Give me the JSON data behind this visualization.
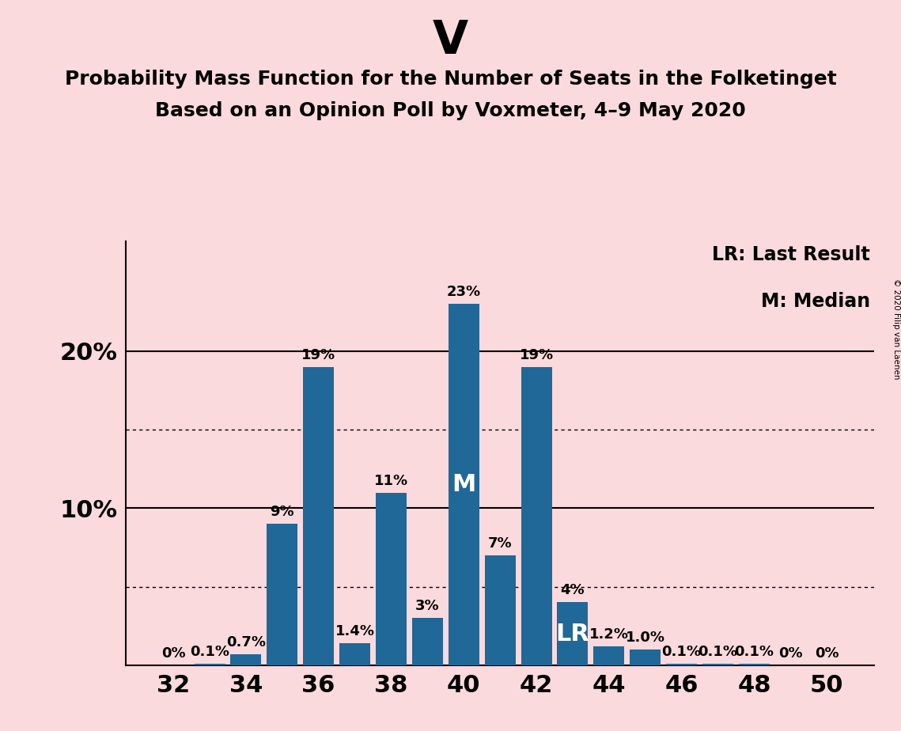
{
  "title_party": "V",
  "title_line1": "Probability Mass Function for the Number of Seats in the Folketinget",
  "title_line2": "Based on an Opinion Poll by Voxmeter, 4–9 May 2020",
  "copyright": "© 2020 Filip van Laenen",
  "legend_lr": "LR: Last Result",
  "legend_m": "M: Median",
  "background_color": "#fadadd",
  "bar_color": "#1f6898",
  "seats": [
    32,
    33,
    34,
    35,
    36,
    37,
    38,
    39,
    40,
    41,
    42,
    43,
    44,
    45,
    46,
    47,
    48,
    49,
    50
  ],
  "probabilities": [
    0.0,
    0.1,
    0.7,
    9.0,
    19.0,
    1.4,
    11.0,
    3.0,
    23.0,
    7.0,
    19.0,
    4.0,
    1.2,
    1.0,
    0.1,
    0.1,
    0.1,
    0.0,
    0.0
  ],
  "labels": [
    "0%",
    "0.1%",
    "0.7%",
    "9%",
    "19%",
    "1.4%",
    "11%",
    "3%",
    "23%",
    "7%",
    "19%",
    "4%",
    "1.2%",
    "1.0%",
    "0.1%",
    "0.1%",
    "0.1%",
    "0%",
    "0%"
  ],
  "median_seat": 40,
  "lr_seat": 43,
  "ylim": [
    0,
    27
  ],
  "solid_gridlines": [
    10,
    20
  ],
  "dotted_gridlines": [
    5,
    15
  ],
  "title_party_fontsize": 42,
  "title_line1_fontsize": 18,
  "title_line2_fontsize": 18,
  "bar_label_fontsize": 13,
  "axis_label_fontsize": 22,
  "legend_fontsize": 17,
  "white_label_texts": {
    "40": "M",
    "43": "LR"
  },
  "white_label_fontsize": 22
}
